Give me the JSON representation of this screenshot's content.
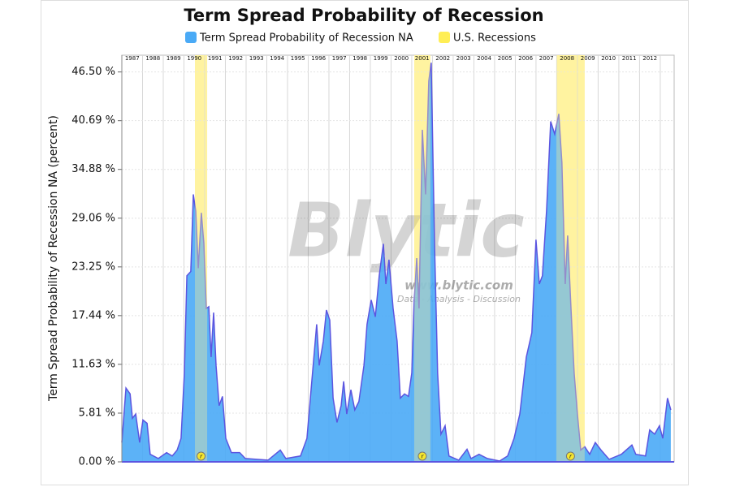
{
  "chart_data": {
    "type": "area",
    "title": "Term Spread Probability of Recession",
    "y_label": "Term Spread Probability of Recession NA (percent)",
    "watermark": {
      "brand": "Blytic",
      "url": "www.blytic.com",
      "tagline": "Data - Analysis - Discussion"
    },
    "x": [
      1987.0,
      1987.2,
      1987.4,
      1987.51,
      1987.67,
      1987.86,
      1988.02,
      1988.22,
      1988.37,
      1988.76,
      1989.16,
      1989.43,
      1989.67,
      1989.86,
      1990.02,
      1990.14,
      1990.33,
      1990.45,
      1990.57,
      1990.69,
      1990.84,
      1990.96,
      1991.08,
      1991.2,
      1991.31,
      1991.43,
      1991.55,
      1991.7,
      1991.86,
      1992.02,
      1992.29,
      1992.69,
      1992.96,
      1994.06,
      1994.65,
      1994.92,
      1995.63,
      1995.94,
      1996.14,
      1996.41,
      1996.53,
      1996.73,
      1996.88,
      1997.04,
      1997.2,
      1997.39,
      1997.59,
      1997.71,
      1997.86,
      1998.06,
      1998.25,
      1998.45,
      1998.69,
      1998.84,
      1999.04,
      1999.24,
      1999.43,
      1999.63,
      1999.75,
      1999.9,
      2000.1,
      2000.29,
      2000.45,
      2000.65,
      2000.84,
      2001.0,
      2001.12,
      2001.24,
      2001.35,
      2001.51,
      2001.67,
      2001.82,
      2001.94,
      2002.1,
      2002.25,
      2002.41,
      2002.61,
      2002.8,
      2003.27,
      2003.67,
      2003.86,
      2004.25,
      2004.65,
      2005.24,
      2005.63,
      2005.94,
      2006.22,
      2006.53,
      2006.8,
      2007.0,
      2007.16,
      2007.31,
      2007.51,
      2007.71,
      2007.9,
      2008.1,
      2008.25,
      2008.41,
      2008.53,
      2008.69,
      2008.84,
      2009.0,
      2009.16,
      2009.35,
      2009.59,
      2009.86,
      2010.14,
      2010.53,
      2011.12,
      2011.63,
      2011.82,
      2012.29,
      2012.49,
      2012.73,
      2012.96,
      2013.12,
      2013.35,
      2013.51
    ],
    "series": [
      {
        "name": "Term Spread Probability of Recession NA",
        "color": "#4aaaf6",
        "edge_color": "#5b55e0",
        "values": [
          2.3,
          8.8,
          8.1,
          5.2,
          5.7,
          2.3,
          5.0,
          4.6,
          0.9,
          0.4,
          1.1,
          0.7,
          1.4,
          2.8,
          10.6,
          22.2,
          22.7,
          31.9,
          29.9,
          23.1,
          29.7,
          26.0,
          18.3,
          18.5,
          12.5,
          17.8,
          11.5,
          6.7,
          7.8,
          2.8,
          1.1,
          1.1,
          0.4,
          0.2,
          1.4,
          0.4,
          0.7,
          2.8,
          8.6,
          16.4,
          11.5,
          14.4,
          18.1,
          16.9,
          7.6,
          4.7,
          6.7,
          9.6,
          5.7,
          8.6,
          6.2,
          7.2,
          11.5,
          16.4,
          19.3,
          17.3,
          22.2,
          26.0,
          21.2,
          24.1,
          18.3,
          14.4,
          7.6,
          8.1,
          7.8,
          10.6,
          19.3,
          24.3,
          18.3,
          39.6,
          31.9,
          45.4,
          47.6,
          26.0,
          10.6,
          3.3,
          4.3,
          0.7,
          0.2,
          1.5,
          0.4,
          0.9,
          0.4,
          0.1,
          0.7,
          2.8,
          5.7,
          12.5,
          15.4,
          26.5,
          21.2,
          22.2,
          29.9,
          40.6,
          39.1,
          41.5,
          35.7,
          21.2,
          27.0,
          18.3,
          10.6,
          5.7,
          1.4,
          1.8,
          0.9,
          2.3,
          1.4,
          0.3,
          0.9,
          2.0,
          0.9,
          0.7,
          3.8,
          3.3,
          4.3,
          2.8,
          7.6,
          6.2
        ]
      }
    ],
    "recessions": {
      "name": "U.S. Recessions",
      "color": "#fff3a0",
      "spans": [
        {
          "start": 1990.53,
          "end": 1991.12,
          "marker": "r"
        },
        {
          "start": 2001.12,
          "end": 2001.9,
          "marker": "r"
        },
        {
          "start": 2007.98,
          "end": 2009.35,
          "marker": "r"
        }
      ]
    },
    "xlim": [
      1987.0,
      2013.67
    ],
    "xgrid": [
      1987,
      1988,
      1989,
      1990,
      1991,
      1992,
      1993,
      1994,
      1995,
      1996,
      1997,
      1998,
      1999,
      2000,
      2001,
      2002,
      2003,
      2004,
      2005,
      2006,
      2007,
      2008,
      2009,
      2010,
      2011,
      2012,
      2013
    ],
    "xticks": [
      {
        "value": 1987.5,
        "label": "1987"
      },
      {
        "value": 1988.5,
        "label": "1988"
      },
      {
        "value": 1989.5,
        "label": "1989"
      },
      {
        "value": 1990.5,
        "label": "1990"
      },
      {
        "value": 1991.5,
        "label": "1991"
      },
      {
        "value": 1992.5,
        "label": "1992"
      },
      {
        "value": 1993.5,
        "label": "1993"
      },
      {
        "value": 1994.5,
        "label": "1994"
      },
      {
        "value": 1995.5,
        "label": "1995"
      },
      {
        "value": 1996.5,
        "label": "1996"
      },
      {
        "value": 1997.5,
        "label": "1997"
      },
      {
        "value": 1998.5,
        "label": "1998"
      },
      {
        "value": 1999.5,
        "label": "1999"
      },
      {
        "value": 2000.5,
        "label": "2000"
      },
      {
        "value": 2001.5,
        "label": "2001"
      },
      {
        "value": 2002.5,
        "label": "2002"
      },
      {
        "value": 2003.5,
        "label": "2003"
      },
      {
        "value": 2004.5,
        "label": "2004"
      },
      {
        "value": 2005.5,
        "label": "2005"
      },
      {
        "value": 2006.5,
        "label": "2006"
      },
      {
        "value": 2007.5,
        "label": "2007"
      },
      {
        "value": 2008.5,
        "label": "2008"
      },
      {
        "value": 2009.5,
        "label": "2009"
      },
      {
        "value": 2010.5,
        "label": "2010"
      },
      {
        "value": 2011.5,
        "label": "2011"
      },
      {
        "value": 2012.5,
        "label": "2012"
      }
    ],
    "ylim": [
      0,
      48.5
    ],
    "yticks": [
      {
        "value": 0,
        "label": "0.00 %"
      },
      {
        "value": 5.81,
        "label": "5.81 %"
      },
      {
        "value": 11.63,
        "label": "11.63 %"
      },
      {
        "value": 17.44,
        "label": "17.44 %"
      },
      {
        "value": 23.25,
        "label": "23.25 %"
      },
      {
        "value": 29.06,
        "label": "29.06 %"
      },
      {
        "value": 34.88,
        "label": "34.88 %"
      },
      {
        "value": 40.69,
        "label": "40.69 %"
      },
      {
        "value": 46.5,
        "label": "46.50 %"
      }
    ],
    "grid": true
  }
}
